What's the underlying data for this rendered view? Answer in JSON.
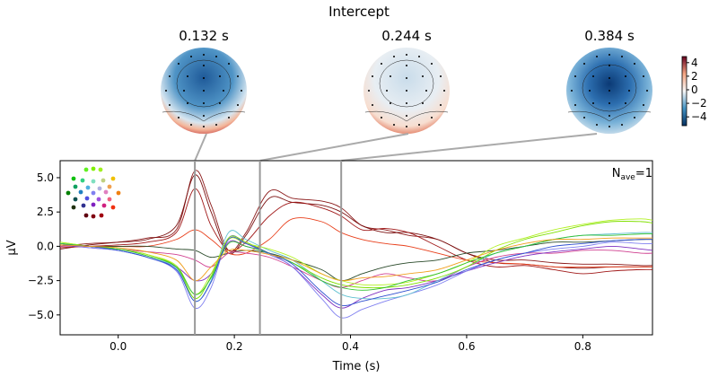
{
  "chart_data": {
    "type": "line",
    "title": "Intercept",
    "xlabel": "Time (s)",
    "ylabel": "µV",
    "xlim": [
      -0.1,
      0.92
    ],
    "ylim": [
      -6.45,
      6.24
    ],
    "xticks": [
      "0.0",
      "0.2",
      "0.4",
      "0.6",
      "0.8"
    ],
    "xtick_values": [
      0,
      0.2,
      0.4,
      0.6,
      0.8
    ],
    "yticks": [
      "5.0",
      "2.5",
      "0.0",
      "−2.5",
      "−5.0"
    ],
    "ytick_values": [
      5,
      2.5,
      0,
      -2.5,
      -5
    ],
    "grid": false,
    "nave_label": "N",
    "nave_sub": "ave",
    "nave_value": "=1",
    "topomap_times": [
      0.132,
      0.244,
      0.384
    ],
    "topomap_labels": [
      "0.132 s",
      "0.244 s",
      "0.384 s"
    ],
    "colorbar": {
      "ticks": [
        "4",
        "2",
        "0",
        "−2",
        "−4"
      ],
      "tick_values": [
        4,
        2,
        0,
        -2,
        -4
      ],
      "range": [
        -5.3,
        4.9
      ],
      "colormap": "RdBu_r"
    },
    "x": [
      -0.1,
      -0.05,
      0,
      0.05,
      0.1,
      0.132,
      0.16,
      0.19,
      0.22,
      0.26,
      0.3,
      0.35,
      0.384,
      0.42,
      0.46,
      0.5,
      0.55,
      0.6,
      0.65,
      0.7,
      0.75,
      0.8,
      0.85,
      0.9,
      0.92
    ],
    "series": [
      {
        "color": "#8b1a1a",
        "values": [
          0,
          0.2,
          0.3,
          0.6,
          1.2,
          5.5,
          3,
          -0.3,
          1,
          4,
          3.5,
          3.3,
          2.8,
          1.5,
          1.2,
          0.8,
          0.5,
          -0.5,
          -1,
          -1,
          -1.2,
          -1.3,
          -1.3,
          -1.4,
          -1.4
        ]
      },
      {
        "color": "#7a0f0f",
        "values": [
          -0.2,
          0.1,
          0.3,
          0.5,
          1.5,
          5.2,
          2.5,
          -0.5,
          0.8,
          3.5,
          3.2,
          3,
          2.5,
          1.5,
          1,
          1,
          0.5,
          -0.5,
          -1.2,
          -1.3,
          -1.5,
          -1.6,
          -1.5,
          -1.5,
          -1.5
        ]
      },
      {
        "color": "#a01818",
        "values": [
          -0.1,
          0,
          0.1,
          0.3,
          1,
          4.2,
          1.5,
          -0.3,
          0.3,
          2.2,
          3.2,
          2.8,
          2.2,
          1.2,
          1.3,
          1,
          0,
          -1,
          -1.5,
          -1.4,
          -1.7,
          -2,
          -1.8,
          -1.7,
          -1.7
        ]
      },
      {
        "color": "#e8401c",
        "values": [
          0.1,
          0,
          0,
          0,
          0.5,
          1.2,
          0.5,
          -0.5,
          -0.5,
          0.5,
          2,
          1.8,
          1,
          0.5,
          0.2,
          0,
          -0.5,
          -1,
          -1.2,
          -1.3,
          -1.5,
          -1.5,
          -1.5,
          -1.5,
          -1.5
        ]
      },
      {
        "color": "#2a4a2a",
        "values": [
          0.2,
          0,
          0,
          0,
          -0.2,
          -0.3,
          -0.8,
          -0.5,
          -0.3,
          -0.5,
          -1,
          -1.7,
          -2.5,
          -2,
          -1.5,
          -1.2,
          -1,
          -0.5,
          -0.3,
          0,
          0.3,
          0.3,
          0.4,
          0.5,
          0.5
        ]
      },
      {
        "color": "#d04090",
        "values": [
          0,
          0,
          -0.2,
          -0.4,
          -0.6,
          -1,
          -1.5,
          -0.5,
          -0.5,
          -0.8,
          -1.5,
          -2.5,
          -3,
          -2.5,
          -2,
          -2.3,
          -2.5,
          -1.5,
          -0.8,
          -0.5,
          -0.5,
          -0.3,
          -0.3,
          -0.5,
          -0.5
        ]
      },
      {
        "color": "#8030c0",
        "values": [
          0.1,
          -0.1,
          -0.3,
          -0.8,
          -1.5,
          -2.5,
          -2,
          0.3,
          0,
          -0.5,
          -1.5,
          -3.5,
          -4.5,
          -3.8,
          -3.2,
          -3,
          -2.5,
          -1.8,
          -1.2,
          -0.7,
          -0.4,
          -0.2,
          0,
          -0.2,
          -0.3
        ]
      },
      {
        "color": "#8080f0",
        "values": [
          0.2,
          -0.1,
          -0.3,
          -0.8,
          -1.8,
          -4.5,
          -3,
          0.6,
          0.2,
          -0.6,
          -1.5,
          -3.8,
          -5.2,
          -4.6,
          -4,
          -3.5,
          -2.8,
          -1.8,
          -1,
          -0.5,
          -0.2,
          0,
          0.3,
          0.2,
          0.2
        ]
      },
      {
        "color": "#60c0d0",
        "values": [
          0.2,
          0,
          -0.3,
          -0.8,
          -1.6,
          -4,
          -2.5,
          1,
          0.5,
          -0.3,
          -1,
          -2.5,
          -3.5,
          -3.8,
          -3.8,
          -3.5,
          -2.5,
          -1.5,
          -0.5,
          0,
          0.5,
          0.8,
          0.9,
          1,
          1
        ]
      },
      {
        "color": "#80e000",
        "values": [
          0.3,
          0,
          -0.2,
          -0.6,
          -1.5,
          -3.8,
          -2.2,
          0.6,
          0.3,
          -0.5,
          -1.2,
          -2.3,
          -2.8,
          -3,
          -3,
          -2.8,
          -2.3,
          -1.5,
          -0.3,
          0.5,
          1,
          1.5,
          1.8,
          1.8,
          1.7
        ]
      },
      {
        "color": "#b0f020",
        "values": [
          0.3,
          0,
          -0.2,
          -0.6,
          -1.4,
          -3.5,
          -2,
          0.5,
          0.2,
          -0.2,
          -0.8,
          -2,
          -2.5,
          -2.8,
          -2.8,
          -2.6,
          -2,
          -1.2,
          0,
          0.6,
          1.2,
          1.6,
          1.9,
          2,
          1.9
        ]
      },
      {
        "color": "#30c030",
        "values": [
          0.2,
          0,
          -0.2,
          -0.7,
          -1.5,
          -3.5,
          -2.3,
          0.2,
          0,
          -0.5,
          -1.2,
          -2.5,
          -3,
          -3.2,
          -3,
          -2.5,
          -2,
          -1.2,
          -0.5,
          0,
          0.5,
          0.8,
          0.8,
          0.9,
          0.9
        ]
      },
      {
        "color": "#3050d0",
        "values": [
          0.1,
          0,
          -0.3,
          -0.8,
          -1.7,
          -4,
          -2.6,
          0.5,
          0.2,
          -0.5,
          -1.3,
          -3.3,
          -4.3,
          -4,
          -3.6,
          -3.2,
          -2.6,
          -1.7,
          -1,
          -0.5,
          0,
          0.2,
          0.4,
          0.5,
          0.5
        ]
      },
      {
        "color": "#f0a020",
        "values": [
          0.1,
          0,
          -0.1,
          -0.4,
          -1,
          -2.5,
          -1.5,
          -0.3,
          -0.3,
          -0.6,
          -1,
          -2,
          -2.5,
          -2.3,
          -2.2,
          -2,
          -1.7,
          -1,
          -0.3,
          0.2,
          0.5,
          0.5,
          0.6,
          0.6,
          0.6
        ]
      }
    ],
    "sensor_colors": [
      "#60f020",
      "#80f000",
      "#a0f020",
      "#10c010",
      "#30d080",
      "#80e0c0",
      "#c0d080",
      "#f0c000",
      "#10a060",
      "#50b0e0",
      "#b0b0e0",
      "#f0a050",
      "#008000",
      "#2080c0",
      "#8080f0",
      "#e080c0",
      "#f08010",
      "#105050",
      "#5050e0",
      "#a050e0",
      "#f06080",
      "#203010",
      "#303090",
      "#8020c0",
      "#d02080",
      "#f03010",
      "#600010",
      "#800010",
      "#a00010"
    ]
  }
}
